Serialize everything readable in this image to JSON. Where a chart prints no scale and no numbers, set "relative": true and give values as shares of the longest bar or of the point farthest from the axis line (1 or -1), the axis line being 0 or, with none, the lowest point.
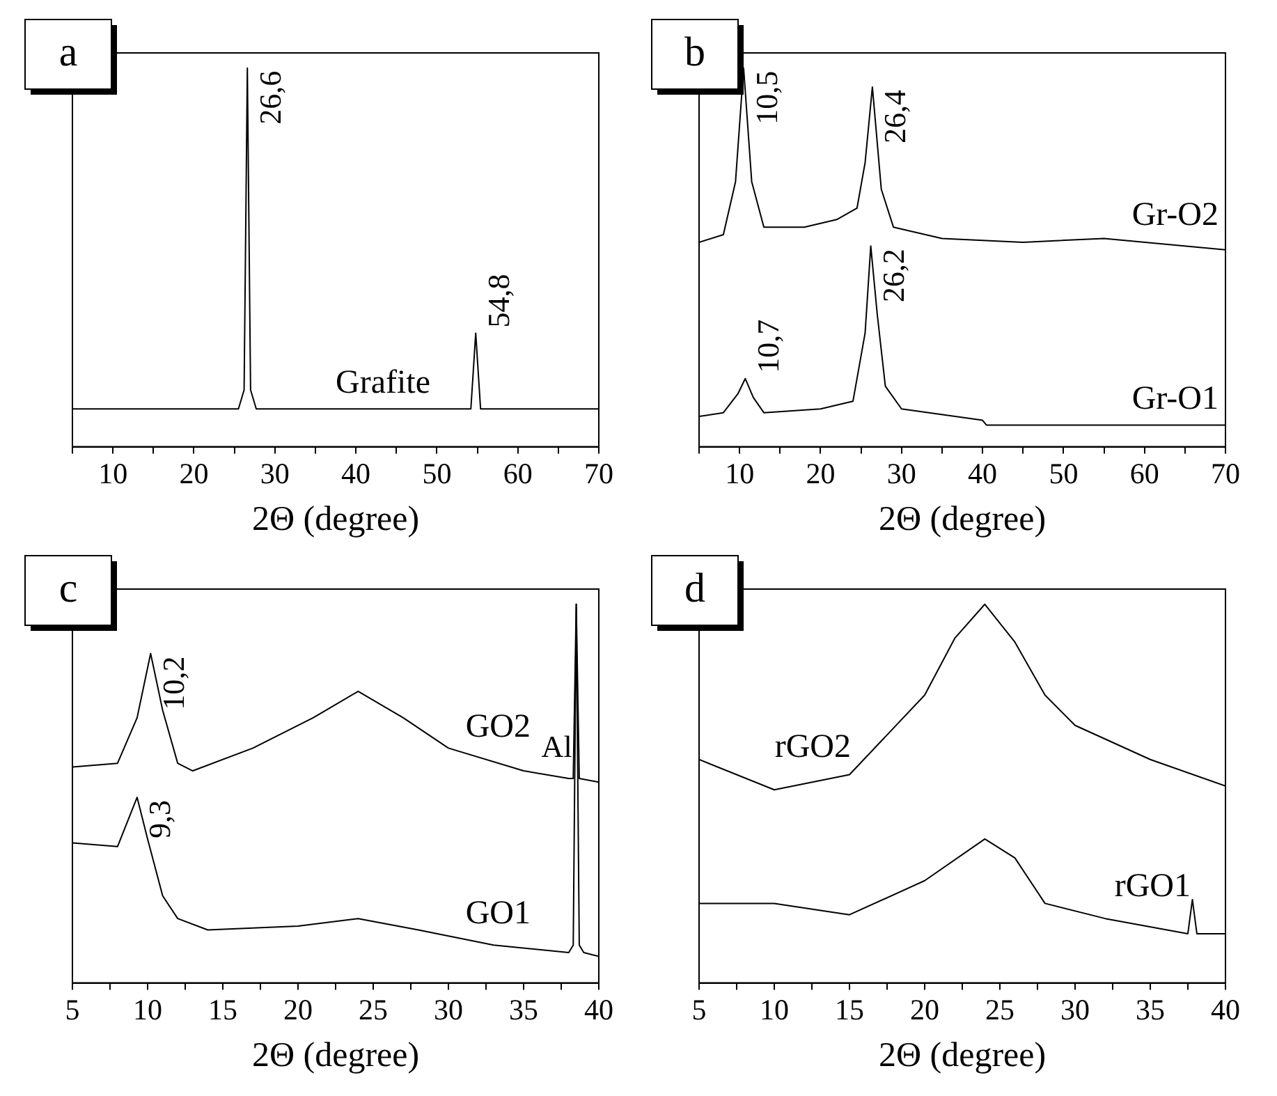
{
  "chart_data": [
    {
      "type": "line",
      "title": "a",
      "xlabel": "2Θ (degree)",
      "relative": true,
      "marker": "none",
      "xlim": [
        5,
        70
      ],
      "xticks": [
        {
          "value": 5,
          "label": null
        },
        10,
        {
          "value": 15,
          "label": null
        },
        20,
        {
          "value": 25,
          "label": null
        },
        30,
        {
          "value": 35,
          "label": null
        },
        40,
        {
          "value": 45,
          "label": null
        },
        50,
        {
          "value": 55,
          "label": null
        },
        60,
        {
          "value": 65,
          "label": null
        },
        70
      ],
      "series": [
        {
          "name": "Grafite",
          "color": "#000000",
          "x": [
            5,
            25.5,
            26.2,
            26.6,
            27,
            27.7,
            54.2,
            54.8,
            55.4,
            70
          ],
          "values": [
            0.1,
            0.1,
            0.15,
            1,
            0.15,
            0.1,
            0.1,
            0.3,
            0.1,
            0.1
          ]
        }
      ],
      "annotations": [
        {
          "text": "26,6",
          "x": 26.6,
          "y": 1
        },
        {
          "text": "54,8",
          "x": 54.8,
          "y": 0.3
        }
      ]
    },
    {
      "type": "line",
      "title": "b",
      "xlabel": "2Θ (degree)",
      "relative": true,
      "marker": "none",
      "xlim": [
        5,
        70
      ],
      "xticks": [
        {
          "value": 5,
          "label": null
        },
        10,
        {
          "value": 15,
          "label": null
        },
        20,
        {
          "value": 25,
          "label": null
        },
        30,
        {
          "value": 35,
          "label": null
        },
        40,
        {
          "value": 45,
          "label": null
        },
        50,
        {
          "value": 55,
          "label": null
        },
        60,
        {
          "value": 65,
          "label": null
        },
        70
      ],
      "series": [
        {
          "name": "Gr-O2",
          "color": "#000000",
          "x": [
            5,
            8,
            9.5,
            10.5,
            11.5,
            13,
            18,
            22,
            24.5,
            25.5,
            26.4,
            27.5,
            29,
            35,
            45,
            55,
            70
          ],
          "values": [
            0.54,
            0.56,
            0.7,
            1,
            0.7,
            0.58,
            0.58,
            0.6,
            0.63,
            0.75,
            0.95,
            0.68,
            0.58,
            0.55,
            0.54,
            0.55,
            0.52
          ]
        },
        {
          "name": "Gr-O1",
          "color": "#000000",
          "x": [
            5,
            8,
            9.8,
            10.7,
            11.7,
            13,
            20,
            24,
            25.5,
            26.2,
            27,
            28,
            30,
            40,
            40.5,
            55,
            70
          ],
          "values": [
            0.08,
            0.09,
            0.14,
            0.18,
            0.13,
            0.09,
            0.1,
            0.12,
            0.3,
            0.53,
            0.35,
            0.16,
            0.1,
            0.07,
            0.057,
            0.057,
            0.057
          ]
        }
      ],
      "annotations": [
        {
          "text": "10,5",
          "x": 10.5,
          "y": 1
        },
        {
          "text": "26,4",
          "x": 26.4,
          "y": 0.95
        },
        {
          "text": "10,7",
          "x": 10.7,
          "y": 0.18
        },
        {
          "text": "26,2",
          "x": 26.2,
          "y": 0.53
        }
      ]
    },
    {
      "type": "line",
      "title": "c",
      "xlabel": "2Θ (degree)",
      "relative": true,
      "marker": "none",
      "xlim": [
        5,
        40
      ],
      "xticks": [
        5,
        {
          "value": 7.5,
          "label": null
        },
        10,
        {
          "value": 12.5,
          "label": null
        },
        15,
        {
          "value": 17.5,
          "label": null
        },
        20,
        {
          "value": 22.5,
          "label": null
        },
        25,
        {
          "value": 27.5,
          "label": null
        },
        30,
        {
          "value": 32.5,
          "label": null
        },
        35,
        {
          "value": 37.5,
          "label": null
        },
        40
      ],
      "series": [
        {
          "name": "GO2",
          "color": "#000000",
          "x": [
            5,
            8,
            9.3,
            10.2,
            11,
            12,
            13,
            17,
            21,
            24,
            27,
            30,
            35,
            38,
            38.3,
            38.5,
            38.7,
            40
          ],
          "values": [
            0.57,
            0.58,
            0.7,
            0.87,
            0.72,
            0.58,
            0.56,
            0.62,
            0.7,
            0.77,
            0.7,
            0.62,
            0.56,
            0.54,
            0.54,
            1,
            0.54,
            0.53
          ]
        },
        {
          "name": "GO1",
          "color": "#000000",
          "x": [
            5,
            8,
            9.3,
            10,
            11,
            12,
            14,
            20,
            24,
            28,
            33,
            38,
            38.3,
            38.5,
            38.7,
            39,
            40
          ],
          "values": [
            0.37,
            0.36,
            0.49,
            0.38,
            0.23,
            0.17,
            0.14,
            0.15,
            0.17,
            0.14,
            0.1,
            0.08,
            0.1,
            1,
            0.1,
            0.08,
            0.07
          ]
        }
      ],
      "annotations": [
        {
          "text": "10,2",
          "x": 10.2,
          "y": 0.87
        },
        {
          "text": "9,3",
          "x": 9.3,
          "y": 0.49
        },
        {
          "text": "Al",
          "x": 38.5,
          "y": 0.57
        }
      ]
    },
    {
      "type": "line",
      "title": "d",
      "xlabel": "2Θ (degree)",
      "relative": true,
      "marker": "none",
      "xlim": [
        5,
        40
      ],
      "xticks": [
        5,
        {
          "value": 7.5,
          "label": null
        },
        10,
        {
          "value": 12.5,
          "label": null
        },
        15,
        {
          "value": 17.5,
          "label": null
        },
        20,
        {
          "value": 22.5,
          "label": null
        },
        25,
        {
          "value": 27.5,
          "label": null
        },
        30,
        {
          "value": 32.5,
          "label": null
        },
        35,
        {
          "value": 37.5,
          "label": null
        },
        40
      ],
      "series": [
        {
          "name": "rGO2",
          "color": "#000000",
          "x": [
            5,
            10,
            15,
            20,
            22,
            24,
            26,
            28,
            30,
            35,
            40
          ],
          "values": [
            0.59,
            0.51,
            0.55,
            0.76,
            0.91,
            1,
            0.9,
            0.76,
            0.68,
            0.59,
            0.52
          ]
        },
        {
          "name": "rGO1",
          "color": "#000000",
          "x": [
            5,
            10,
            15,
            20,
            24,
            26,
            28,
            32,
            37.5,
            37.8,
            38.1,
            40
          ],
          "values": [
            0.21,
            0.21,
            0.18,
            0.27,
            0.38,
            0.33,
            0.21,
            0.17,
            0.13,
            0.22,
            0.13,
            0.13
          ]
        }
      ]
    }
  ]
}
